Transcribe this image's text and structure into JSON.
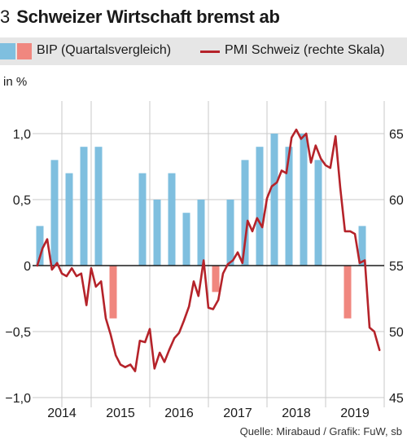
{
  "header": {
    "figure_number": "3",
    "title": "Schweizer Wirtschaft bremst ab"
  },
  "legend": {
    "bip_label": "BIP (Quartalsvergleich)",
    "pmi_label": "PMI Schweiz (rechte Skala)"
  },
  "axis": {
    "left_unit": "in %"
  },
  "footer": {
    "source": "Quelle: Mirabaud / Grafik: FuW, sb"
  },
  "colors": {
    "bar_positive": "#7fbfdf",
    "bar_negative": "#f0877f",
    "line": "#b5232a",
    "grid": "#c8c8c8",
    "zero_line": "#1a1a1a"
  },
  "chart_data": {
    "type": "bar",
    "title": "Schweizer Wirtschaft bremst ab",
    "x_range": [
      2013.5,
      2019.5
    ],
    "x_ticks": [
      {
        "label": "2014",
        "value": 2014.0
      },
      {
        "label": "2015",
        "value": 2015.0
      },
      {
        "label": "2016",
        "value": 2016.0
      },
      {
        "label": "2017",
        "value": 2017.0
      },
      {
        "label": "2018",
        "value": 2018.0
      },
      {
        "label": "2019",
        "value": 2019.0
      }
    ],
    "left_axis": {
      "ylim": [
        -1.0,
        1.25
      ],
      "ticks": [
        {
          "label": "1,0",
          "value": 1.0
        },
        {
          "label": "0,5",
          "value": 0.5
        },
        {
          "label": "0",
          "value": 0.0
        },
        {
          "label": "−0,5",
          "value": -0.5
        },
        {
          "label": "−1,0",
          "value": -1.0
        }
      ]
    },
    "right_axis": {
      "ylim": [
        45,
        67.5
      ],
      "ticks": [
        {
          "label": "65",
          "value": 65
        },
        {
          "label": "60",
          "value": 60
        },
        {
          "label": "55",
          "value": 55
        },
        {
          "label": "50",
          "value": 50
        },
        {
          "label": "45",
          "value": 45
        }
      ]
    },
    "grid": true,
    "legend_position": "top",
    "series": [
      {
        "name": "BIP (Quartalsvergleich)",
        "type": "bar",
        "axis": "left",
        "x": [
          2013.625,
          2013.875,
          2014.125,
          2014.375,
          2014.625,
          2014.875,
          2015.125,
          2015.375,
          2015.625,
          2015.875,
          2016.125,
          2016.375,
          2016.625,
          2016.875,
          2017.125,
          2017.375,
          2017.625,
          2017.875,
          2018.125,
          2018.375,
          2018.625,
          2018.875,
          2019.125
        ],
        "values": [
          0.3,
          0.8,
          0.7,
          0.9,
          0.9,
          -0.4,
          0.0,
          0.7,
          0.5,
          0.7,
          0.4,
          0.5,
          -0.2,
          0.5,
          0.8,
          0.9,
          1.0,
          0.9,
          1.0,
          0.8,
          0.0,
          -0.4,
          0.3
        ]
      },
      {
        "name": "PMI Schweiz (rechte Skala)",
        "type": "line",
        "axis": "right",
        "x": [
          2013.58,
          2013.67,
          2013.75,
          2013.83,
          2013.92,
          2014.0,
          2014.08,
          2014.17,
          2014.25,
          2014.33,
          2014.42,
          2014.5,
          2014.58,
          2014.67,
          2014.75,
          2014.83,
          2014.92,
          2015.0,
          2015.08,
          2015.17,
          2015.25,
          2015.33,
          2015.42,
          2015.5,
          2015.58,
          2015.67,
          2015.75,
          2015.83,
          2015.92,
          2016.0,
          2016.08,
          2016.17,
          2016.25,
          2016.33,
          2016.42,
          2016.5,
          2016.58,
          2016.67,
          2016.75,
          2016.83,
          2016.92,
          2017.0,
          2017.08,
          2017.17,
          2017.25,
          2017.33,
          2017.42,
          2017.5,
          2017.58,
          2017.67,
          2017.75,
          2017.83,
          2017.92,
          2018.0,
          2018.08,
          2018.17,
          2018.25,
          2018.33,
          2018.42,
          2018.5,
          2018.58,
          2018.67,
          2018.75,
          2018.83,
          2018.92,
          2019.0,
          2019.08,
          2019.17,
          2019.25,
          2019.33,
          2019.42
        ],
        "values": [
          55.0,
          56.3,
          57.0,
          54.7,
          55.2,
          54.4,
          54.2,
          54.8,
          54.2,
          54.4,
          52.0,
          54.8,
          53.4,
          53.8,
          51.0,
          49.8,
          48.2,
          47.5,
          47.3,
          47.5,
          47.0,
          49.3,
          49.2,
          50.2,
          47.2,
          48.4,
          47.7,
          48.6,
          49.5,
          49.9,
          50.8,
          51.9,
          53.8,
          52.7,
          55.4,
          51.8,
          51.7,
          52.4,
          54.4,
          55.1,
          55.4,
          56.0,
          55.2,
          58.4,
          57.6,
          58.6,
          57.9,
          60.1,
          61.0,
          61.3,
          62.2,
          62.0,
          64.7,
          65.3,
          64.6,
          65.0,
          62.8,
          64.1,
          63.1,
          62.6,
          62.4,
          64.8,
          60.9,
          57.6,
          57.6,
          57.4,
          55.2,
          55.4,
          50.3,
          50.0,
          48.6
        ]
      }
    ]
  }
}
